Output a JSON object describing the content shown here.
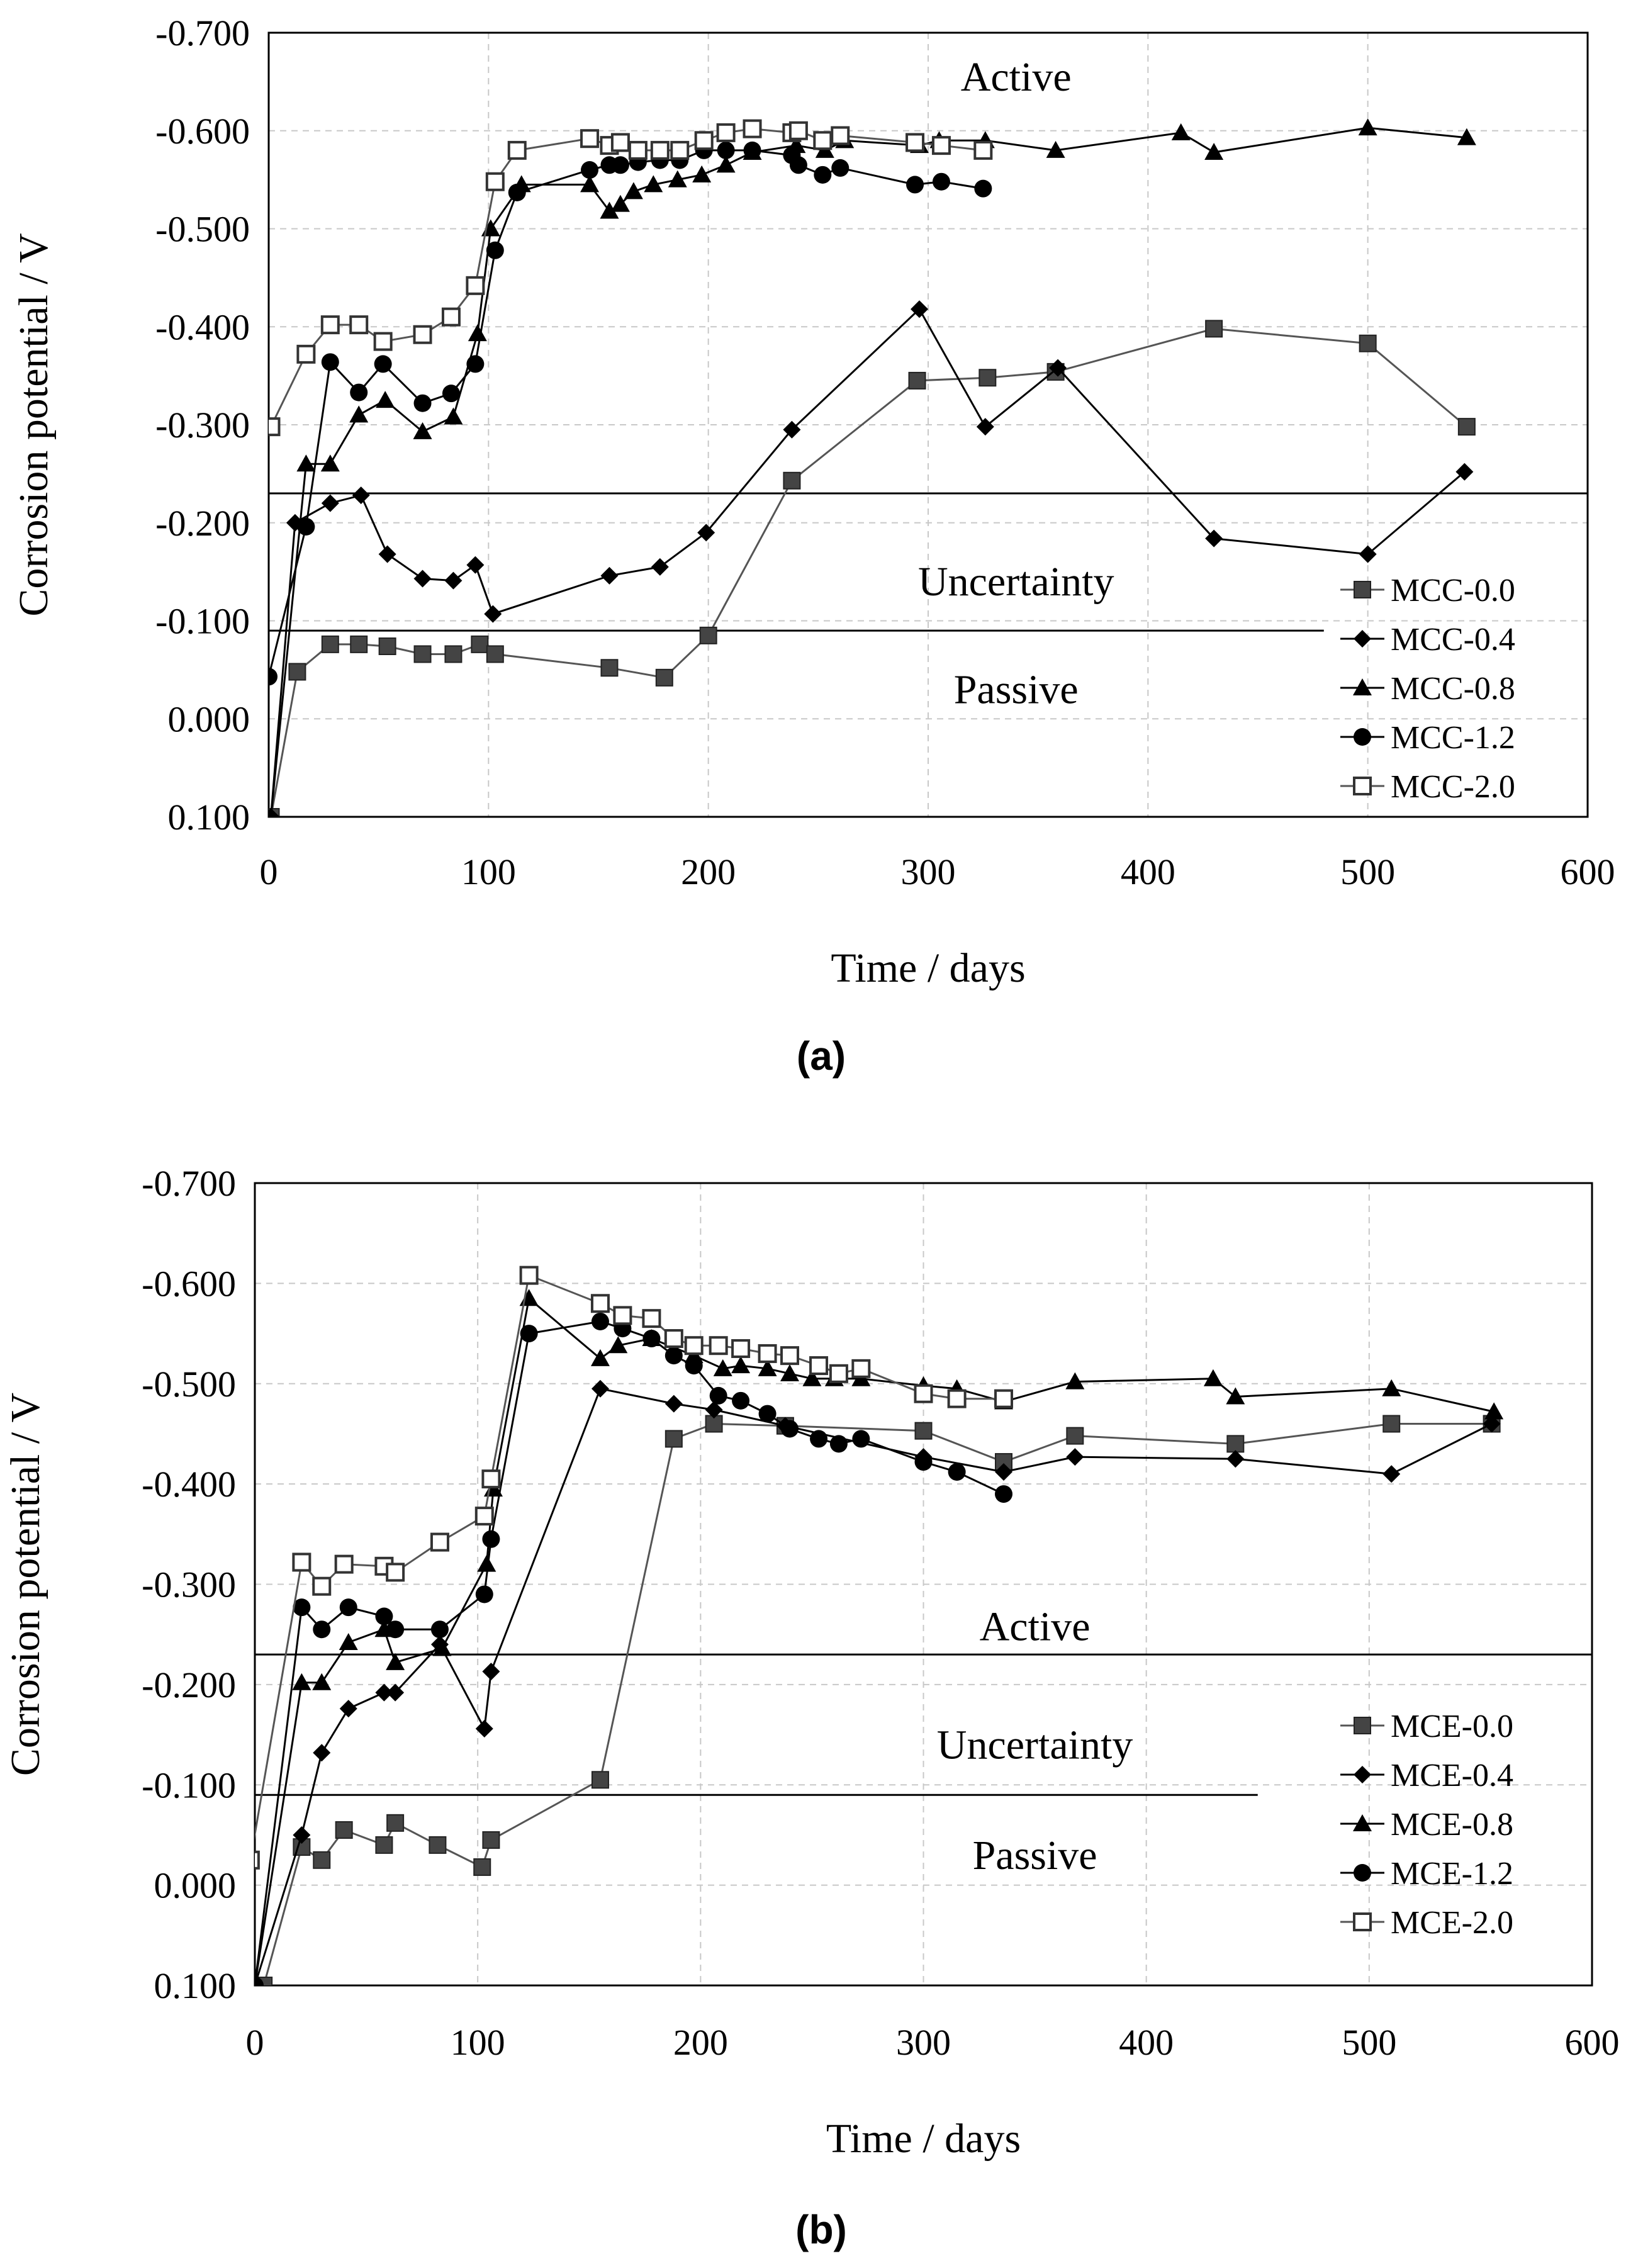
{
  "chart_data": [
    {
      "type": "line",
      "panel_label": "(a)",
      "xlabel": "Time / days",
      "ylabel": "Corrosion potential / V",
      "xlim": [
        0,
        600
      ],
      "ylim": [
        0.1,
        -0.7
      ],
      "x_ticks": [
        "0",
        "100",
        "200",
        "300",
        "400",
        "500",
        "600"
      ],
      "y_ticks": [
        "-0.700",
        "-0.600",
        "-0.500",
        "-0.400",
        "-0.300",
        "-0.200",
        "-0.100",
        "0.000",
        "0.100"
      ],
      "grid": true,
      "legend_position": "bottom-right",
      "thresholds": [
        {
          "value": -0.23,
          "x_end": 600
        },
        {
          "value": -0.09,
          "x_end": 480
        }
      ],
      "regions": [
        {
          "label": "Active",
          "x": 340,
          "y": -0.655
        },
        {
          "label": "Uncertainty",
          "x": 340,
          "y": -0.14
        },
        {
          "label": "Passive",
          "x": 340,
          "y": -0.03
        }
      ],
      "series": [
        {
          "name": "MCC-0.0",
          "marker": "square-filled",
          "x": [
            1,
            13,
            28,
            41,
            54,
            70,
            84,
            96,
            103,
            155,
            180,
            200,
            238,
            295,
            327,
            358,
            430,
            500,
            545
          ],
          "y": [
            0.1,
            -0.048,
            -0.076,
            -0.076,
            -0.074,
            -0.066,
            -0.066,
            -0.076,
            -0.066,
            -0.052,
            -0.042,
            -0.085,
            -0.243,
            -0.345,
            -0.348,
            -0.354,
            -0.398,
            -0.383,
            -0.298
          ]
        },
        {
          "name": "MCC-0.4",
          "marker": "diamond-filled",
          "x": [
            1,
            12,
            28,
            42,
            54,
            70,
            84,
            94,
            102,
            155,
            178,
            199,
            238,
            296,
            326,
            359,
            430,
            500,
            544
          ],
          "y": [
            0.1,
            -0.2,
            -0.22,
            -0.228,
            -0.168,
            -0.143,
            -0.141,
            -0.157,
            -0.107,
            -0.146,
            -0.155,
            -0.19,
            -0.295,
            -0.418,
            -0.298,
            -0.358,
            -0.184,
            -0.168,
            -0.252
          ]
        },
        {
          "name": "MCC-0.8",
          "marker": "triangle-filled",
          "x": [
            1,
            17,
            28,
            41,
            53,
            70,
            84,
            95,
            101,
            115,
            146,
            155,
            160,
            166,
            175,
            186,
            197,
            208,
            220,
            240,
            253,
            262,
            296,
            305,
            326,
            358,
            415,
            430,
            500,
            545
          ],
          "y": [
            0.1,
            -0.26,
            -0.26,
            -0.31,
            -0.325,
            -0.293,
            -0.308,
            -0.393,
            -0.5,
            -0.545,
            -0.545,
            -0.518,
            -0.525,
            -0.538,
            -0.545,
            -0.55,
            -0.555,
            -0.565,
            -0.578,
            -0.585,
            -0.58,
            -0.59,
            -0.585,
            -0.59,
            -0.59,
            -0.58,
            -0.598,
            -0.578,
            -0.603,
            -0.593
          ]
        },
        {
          "name": "MCC-1.2",
          "marker": "circle-filled",
          "x": [
            0,
            17,
            28,
            41,
            52,
            70,
            83,
            94,
            103,
            113,
            146,
            155,
            160,
            168,
            178,
            187,
            198,
            208,
            220,
            238,
            241,
            252,
            260,
            294,
            306,
            325
          ],
          "y": [
            -0.043,
            -0.196,
            -0.364,
            -0.333,
            -0.362,
            -0.322,
            -0.332,
            -0.362,
            -0.478,
            -0.537,
            -0.56,
            -0.565,
            -0.565,
            -0.568,
            -0.57,
            -0.57,
            -0.58,
            -0.58,
            -0.58,
            -0.575,
            -0.565,
            -0.555,
            -0.562,
            -0.545,
            -0.548,
            -0.541
          ]
        },
        {
          "name": "MCC-2.0",
          "marker": "square-open",
          "x": [
            1,
            17,
            28,
            41,
            52,
            70,
            83,
            94,
            103,
            113,
            146,
            155,
            160,
            168,
            178,
            187,
            198,
            208,
            220,
            238,
            241,
            252,
            260,
            294,
            306,
            325
          ],
          "y": [
            -0.298,
            -0.372,
            -0.402,
            -0.402,
            -0.385,
            -0.392,
            -0.41,
            -0.442,
            -0.548,
            -0.58,
            -0.592,
            -0.585,
            -0.588,
            -0.58,
            -0.58,
            -0.58,
            -0.59,
            -0.598,
            -0.602,
            -0.598,
            -0.6,
            -0.59,
            -0.595,
            -0.588,
            -0.585,
            -0.58
          ]
        }
      ]
    },
    {
      "type": "line",
      "panel_label": "(b)",
      "xlabel": "Time / days",
      "ylabel": "Corrosion potential / V",
      "xlim": [
        0,
        600
      ],
      "ylim": [
        0.1,
        -0.7
      ],
      "x_ticks": [
        "0",
        "100",
        "200",
        "300",
        "400",
        "500",
        "600"
      ],
      "y_ticks": [
        "-0.700",
        "-0.600",
        "-0.500",
        "-0.400",
        "-0.300",
        "-0.200",
        "-0.100",
        "0.000",
        "0.100"
      ],
      "grid": true,
      "legend_position": "bottom-right",
      "thresholds": [
        {
          "value": -0.23,
          "x_end": 600
        },
        {
          "value": -0.09,
          "x_end": 450
        }
      ],
      "regions": [
        {
          "label": "Active",
          "x": 350,
          "y": -0.258
        },
        {
          "label": "Uncertainty",
          "x": 350,
          "y": -0.14
        },
        {
          "label": "Passive",
          "x": 350,
          "y": -0.03
        }
      ],
      "series": [
        {
          "name": "MCE-0.0",
          "marker": "square-filled",
          "x": [
            4,
            21,
            30,
            40,
            58,
            63,
            82,
            102,
            106,
            155,
            188,
            206,
            238,
            300,
            336,
            368,
            440,
            510,
            555
          ],
          "y": [
            0.1,
            -0.038,
            -0.025,
            -0.055,
            -0.04,
            -0.062,
            -0.04,
            -0.018,
            -0.045,
            -0.105,
            -0.445,
            -0.46,
            -0.458,
            -0.453,
            -0.422,
            -0.448,
            -0.44,
            -0.46,
            -0.46
          ]
        },
        {
          "name": "MCE-0.4",
          "marker": "diamond-filled",
          "x": [
            0,
            21,
            30,
            42,
            58,
            63,
            83,
            103,
            106,
            155,
            188,
            206,
            238,
            300,
            336,
            368,
            440,
            510,
            555
          ],
          "y": [
            0.1,
            -0.05,
            -0.132,
            -0.176,
            -0.192,
            -0.192,
            -0.24,
            -0.156,
            -0.213,
            -0.495,
            -0.48,
            -0.474,
            -0.458,
            -0.427,
            -0.412,
            -0.427,
            -0.425,
            -0.41,
            -0.46
          ]
        },
        {
          "name": "MCE-0.8",
          "marker": "triangle-filled",
          "x": [
            0,
            21,
            30,
            42,
            58,
            63,
            84,
            104,
            107,
            123,
            155,
            163,
            178,
            197,
            210,
            218,
            230,
            240,
            250,
            260,
            272,
            300,
            315,
            336,
            368,
            430,
            440,
            510,
            556
          ],
          "y": [
            0.1,
            -0.202,
            -0.202,
            -0.242,
            -0.255,
            -0.222,
            -0.236,
            -0.32,
            -0.395,
            -0.585,
            -0.525,
            -0.538,
            -0.545,
            -0.528,
            -0.515,
            -0.518,
            -0.515,
            -0.51,
            -0.505,
            -0.505,
            -0.505,
            -0.498,
            -0.495,
            -0.482,
            -0.502,
            -0.505,
            -0.487,
            -0.495,
            -0.472
          ]
        },
        {
          "name": "MCE-1.2",
          "marker": "circle-filled",
          "x": [
            0,
            21,
            30,
            42,
            58,
            63,
            83,
            103,
            106,
            123,
            155,
            165,
            178,
            188,
            197,
            208,
            218,
            230,
            240,
            253,
            262,
            272,
            300,
            315,
            336
          ],
          "y": [
            0.1,
            -0.277,
            -0.255,
            -0.277,
            -0.268,
            -0.255,
            -0.255,
            -0.29,
            -0.345,
            -0.55,
            -0.562,
            -0.555,
            -0.545,
            -0.528,
            -0.518,
            -0.488,
            -0.483,
            -0.47,
            -0.455,
            -0.445,
            -0.44,
            -0.445,
            -0.422,
            -0.412,
            -0.39
          ]
        },
        {
          "name": "MCE-2.0",
          "marker": "square-open",
          "x": [
            -2,
            21,
            30,
            40,
            58,
            63,
            83,
            103,
            106,
            123,
            155,
            165,
            178,
            188,
            197,
            208,
            218,
            230,
            240,
            253,
            262,
            272,
            300,
            315,
            336
          ],
          "y": [
            -0.025,
            -0.322,
            -0.298,
            -0.32,
            -0.318,
            -0.312,
            -0.342,
            -0.368,
            -0.405,
            -0.608,
            -0.58,
            -0.568,
            -0.565,
            -0.545,
            -0.538,
            -0.538,
            -0.535,
            -0.53,
            -0.528,
            -0.518,
            -0.51,
            -0.515,
            -0.49,
            -0.485,
            -0.485
          ]
        }
      ]
    }
  ]
}
